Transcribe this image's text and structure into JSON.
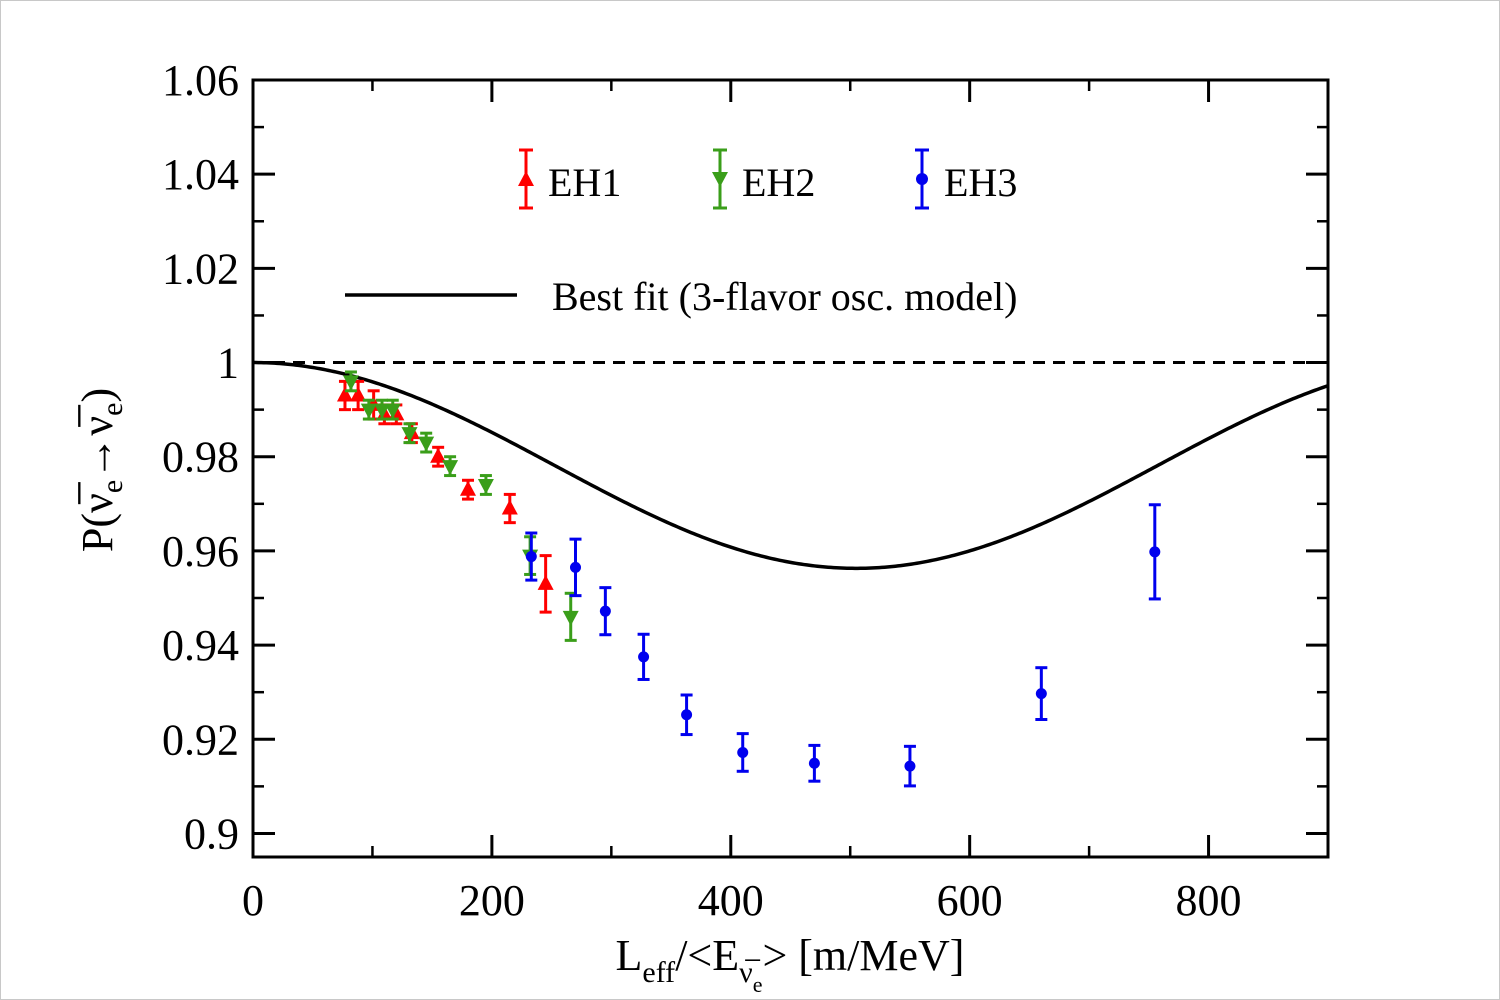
{
  "chart_data": {
    "type": "scatter",
    "xlabel_main": "L",
    "xlabel_sub": "eff",
    "xlabel_mid": "/<E",
    "xlabel_sub2": "ν̅",
    "xlabel_sub2_e": "e",
    "xlabel_tail": "> [m/MeV]",
    "ylabel_pre": "P(",
    "ylabel_nu1": "ν̅",
    "ylabel_sub1": "e",
    "ylabel_arrow": "→",
    "ylabel_nu2": "ν̅",
    "ylabel_sub2": "e",
    "ylabel_post": ")",
    "xlim": [
      0,
      900
    ],
    "ylim": [
      0.895,
      1.06
    ],
    "xticks": [
      0,
      200,
      400,
      600,
      800
    ],
    "xtick_labels": [
      "0",
      "200",
      "400",
      "600",
      "800"
    ],
    "yticks": [
      0.9,
      0.92,
      0.94,
      0.96,
      0.98,
      1.0,
      1.02,
      1.04,
      1.06
    ],
    "ytick_labels": [
      "0.9",
      "0.92",
      "0.94",
      "0.96",
      "0.98",
      "1",
      "1.02",
      "1.04",
      "1.06"
    ],
    "reference_line": 1.0,
    "fit_legend": "Best fit (3-flavor osc. model)",
    "fit_params": {
      "amplitude": 0.0437,
      "period_half": 505
    },
    "series": [
      {
        "name": "EH1",
        "color": "#ff0000",
        "marker": "triangle-up",
        "x": [
          77,
          88,
          101,
          110,
          120,
          133,
          155,
          180,
          215,
          245
        ],
        "y": [
          0.993,
          0.993,
          0.991,
          0.989,
          0.989,
          0.985,
          0.98,
          0.973,
          0.969,
          0.953
        ],
        "err": [
          0.003,
          0.003,
          0.003,
          0.002,
          0.002,
          0.002,
          0.002,
          0.002,
          0.003,
          0.006
        ]
      },
      {
        "name": "EH2",
        "color": "#3a9e1a",
        "marker": "triangle-down",
        "x": [
          82,
          97,
          108,
          117,
          131,
          145,
          165,
          195,
          232,
          266
        ],
        "y": [
          0.996,
          0.99,
          0.99,
          0.99,
          0.985,
          0.983,
          0.978,
          0.974,
          0.959,
          0.946
        ],
        "err": [
          0.002,
          0.002,
          0.002,
          0.002,
          0.002,
          0.002,
          0.002,
          0.002,
          0.004,
          0.005
        ]
      },
      {
        "name": "EH3",
        "color": "#0000ee",
        "marker": "circle",
        "x": [
          233,
          270,
          295,
          327,
          363,
          410,
          470,
          550,
          660,
          755
        ],
        "y": [
          0.9588,
          0.9565,
          0.9472,
          0.9375,
          0.9252,
          0.9172,
          0.9149,
          0.9143,
          0.9297,
          0.9598
        ],
        "err": [
          0.005,
          0.006,
          0.005,
          0.0048,
          0.0042,
          0.004,
          0.0038,
          0.0042,
          0.0055,
          0.01
        ]
      }
    ]
  }
}
